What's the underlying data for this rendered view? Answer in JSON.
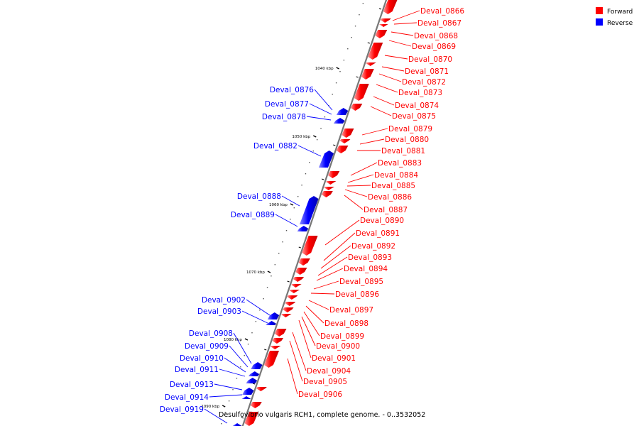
{
  "footer": "Desulfovibrio vulgaris RCH1, complete genome. - 0..3532052",
  "legend": [
    {
      "label": "Forward",
      "color": "#ff0000"
    },
    {
      "label": "Reverse",
      "color": "#0000ff"
    }
  ],
  "colors": {
    "forward": "#ff0000",
    "reverse": "#0000ff",
    "backbone": "#777777"
  },
  "ticks": [
    {
      "label": "1040 kbp"
    },
    {
      "label": "1050 kbp"
    },
    {
      "label": "1060 kbp"
    },
    {
      "label": "1070 kbp"
    },
    {
      "label": "1080 kbp"
    },
    {
      "label": "1090 kbp"
    }
  ],
  "forward_genes": [
    "Deval_0866",
    "Deval_0867",
    "Deval_0868",
    "Deval_0869",
    "Deval_0870",
    "Deval_0871",
    "Deval_0872",
    "Deval_0873",
    "Deval_0874",
    "Deval_0875",
    "Deval_0879",
    "Deval_0880",
    "Deval_0881",
    "Deval_0883",
    "Deval_0884",
    "Deval_0885",
    "Deval_0886",
    "Deval_0887",
    "Deval_0890",
    "Deval_0891",
    "Deval_0892",
    "Deval_0893",
    "Deval_0894",
    "Deval_0895",
    "Deval_0896",
    "Deval_0897",
    "Deval_0898",
    "Deval_0899",
    "Deval_0900",
    "Deval_0901",
    "Deval_0904",
    "Deval_0905",
    "Deval_0906"
  ],
  "reverse_genes": [
    "Deval_0876",
    "Deval_0877",
    "Deval_0878",
    "Deval_0882",
    "Deval_0888",
    "Deval_0889",
    "Deval_0902",
    "Deval_0903",
    "Deval_0908",
    "Deval_0909",
    "Deval_0910",
    "Deval_0911",
    "Deval_0913",
    "Deval_0914",
    "Deval_0919"
  ]
}
